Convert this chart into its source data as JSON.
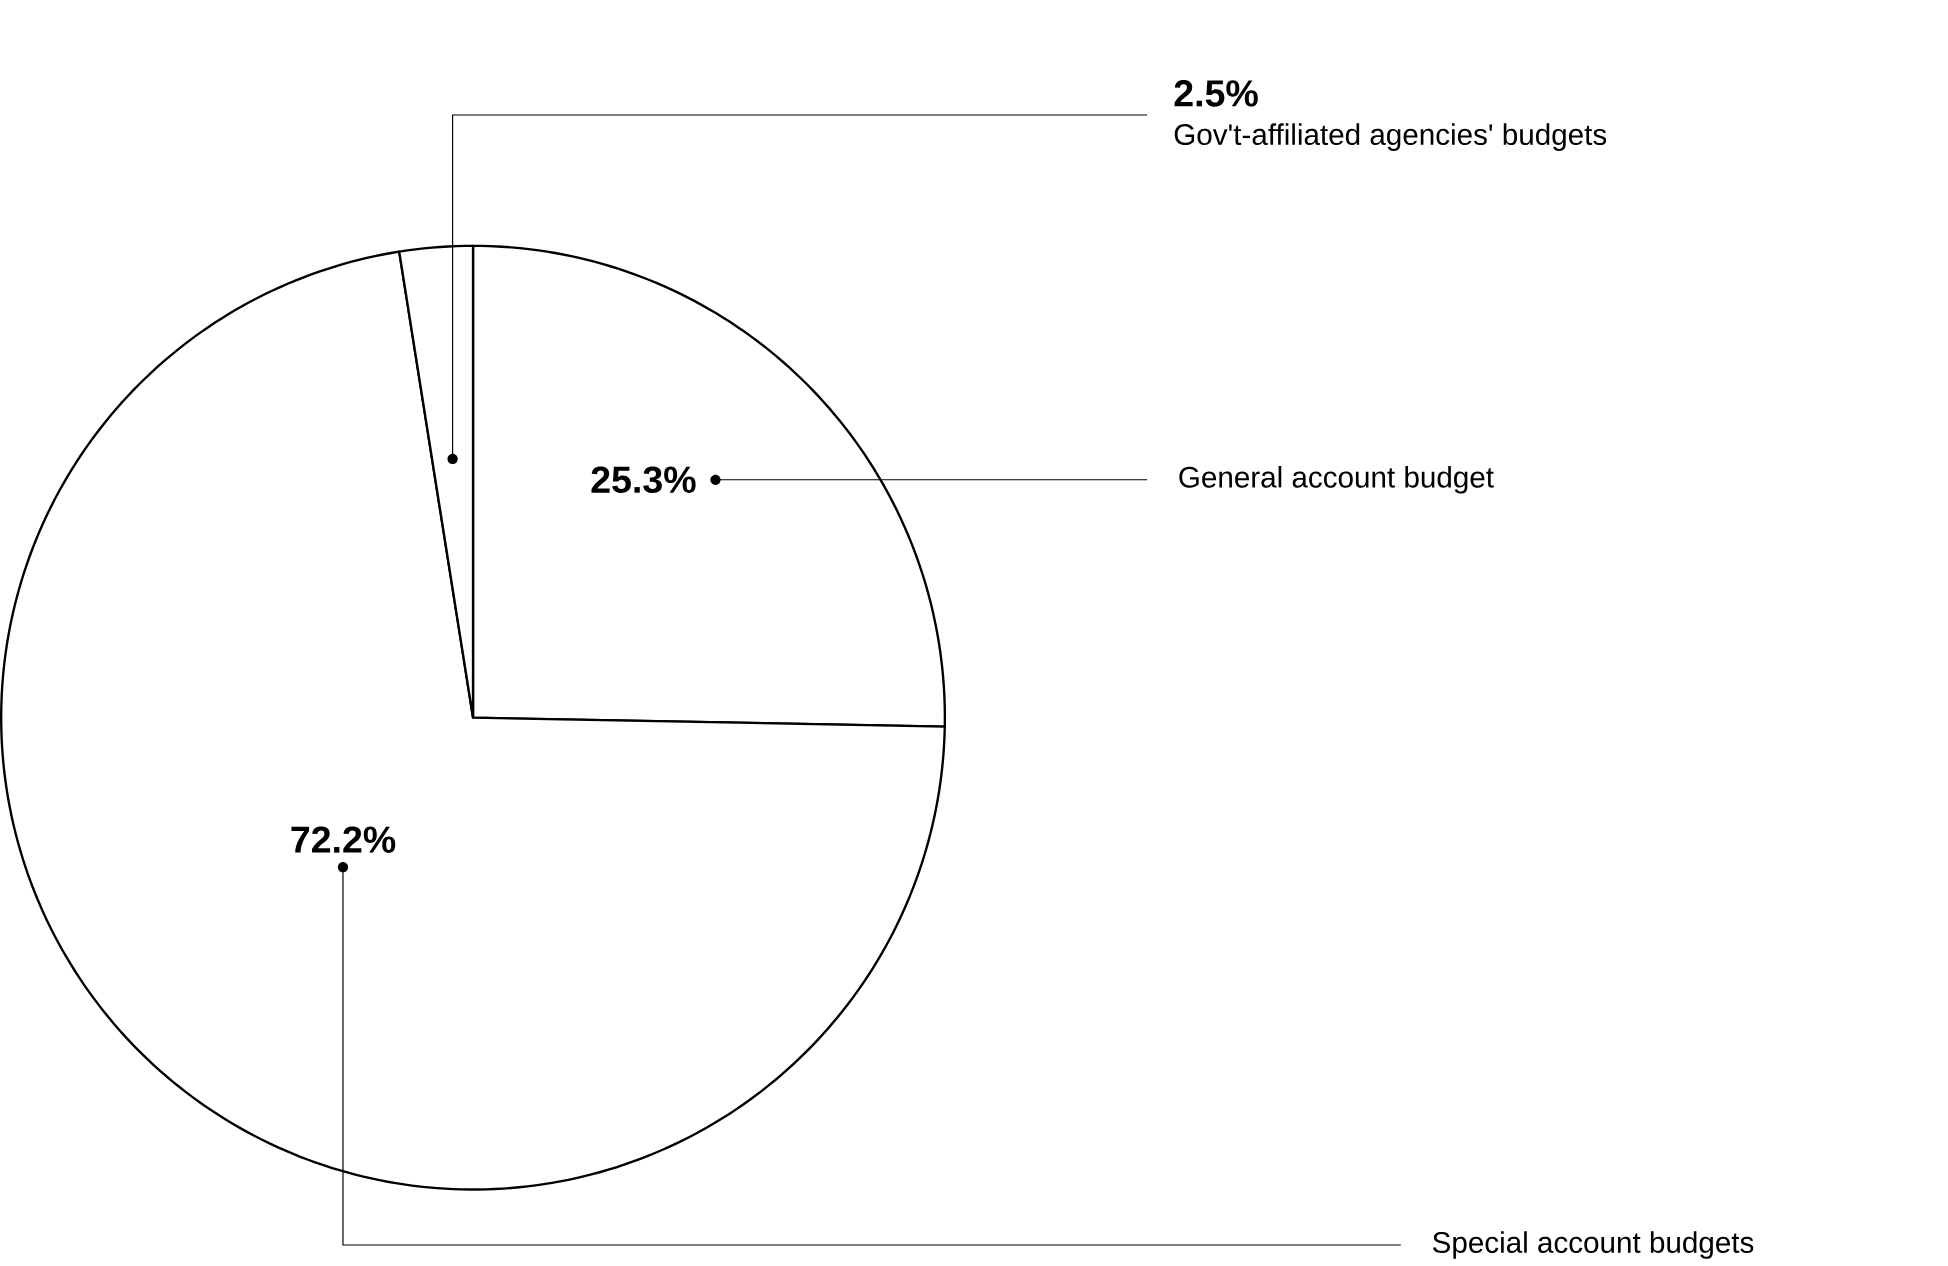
{
  "chart_data": {
    "type": "pie",
    "categories": [
      "General account budget",
      "Special account budgets",
      "Gov't-affiliated agencies' budgets"
    ],
    "values": [
      25.3,
      72.2,
      2.5
    ],
    "value_labels": [
      "25.3%",
      "72.2%",
      "2.5%"
    ],
    "colors": [
      "#ffffff",
      "#ffffff",
      "#ffffff"
    ]
  }
}
